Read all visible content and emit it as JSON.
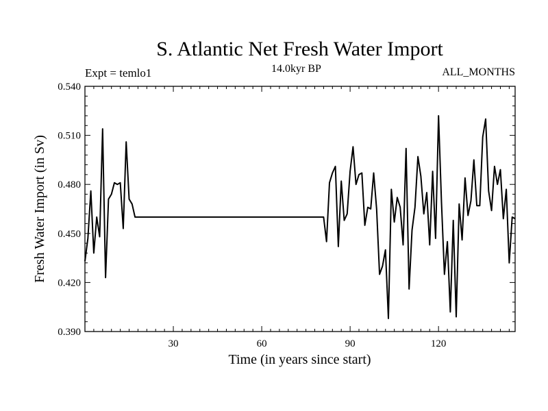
{
  "chart_data": {
    "type": "line",
    "title": "S. Atlantic Net Fresh Water Import",
    "subtitle_left": "Expt = temlo1",
    "subtitle_center": "14.0kyr BP",
    "subtitle_right": "ALL_MONTHS",
    "xlabel": "Time (in years since start)",
    "ylabel": "Fresh Water Import (in Sv)",
    "xlim": [
      0,
      146
    ],
    "ylim": [
      0.39,
      0.54
    ],
    "x_ticks": [
      30,
      60,
      90,
      120
    ],
    "x_tick_labels": [
      "30",
      "60",
      "90",
      "120"
    ],
    "y_ticks": [
      0.39,
      0.42,
      0.45,
      0.48,
      0.51,
      0.54
    ],
    "y_tick_labels": [
      "0.390",
      "0.420",
      "0.450",
      "0.480",
      "0.510",
      "0.540"
    ],
    "grid": false,
    "series": [
      {
        "name": "Fresh Water Import",
        "x": [
          0,
          1,
          2,
          3,
          4,
          5,
          6,
          7,
          8,
          9,
          10,
          11,
          12,
          13,
          14,
          15,
          16,
          17,
          18,
          19,
          20,
          30,
          40,
          50,
          60,
          70,
          80,
          81,
          82,
          83,
          84,
          85,
          86,
          87,
          88,
          89,
          90,
          91,
          92,
          93,
          94,
          95,
          96,
          97,
          98,
          99,
          100,
          101,
          102,
          103,
          104,
          105,
          106,
          107,
          108,
          109,
          110,
          111,
          112,
          113,
          114,
          115,
          116,
          117,
          118,
          119,
          120,
          121,
          122,
          123,
          124,
          125,
          126,
          127,
          128,
          129,
          130,
          131,
          132,
          133,
          134,
          135,
          136,
          137,
          138,
          139,
          140,
          141,
          142,
          143,
          144,
          145,
          146
        ],
        "y": [
          0.433,
          0.447,
          0.476,
          0.438,
          0.46,
          0.448,
          0.514,
          0.423,
          0.471,
          0.474,
          0.481,
          0.48,
          0.481,
          0.453,
          0.506,
          0.471,
          0.468,
          0.46,
          0.46,
          0.46,
          0.46,
          0.46,
          0.46,
          0.46,
          0.46,
          0.46,
          0.46,
          0.46,
          0.445,
          0.481,
          0.487,
          0.491,
          0.442,
          0.482,
          0.458,
          0.462,
          0.488,
          0.503,
          0.48,
          0.486,
          0.487,
          0.455,
          0.466,
          0.465,
          0.487,
          0.465,
          0.425,
          0.43,
          0.44,
          0.398,
          0.477,
          0.457,
          0.472,
          0.466,
          0.443,
          0.502,
          0.416,
          0.452,
          0.466,
          0.497,
          0.485,
          0.462,
          0.475,
          0.443,
          0.488,
          0.447,
          0.522,
          0.469,
          0.425,
          0.445,
          0.402,
          0.458,
          0.399,
          0.468,
          0.446,
          0.484,
          0.461,
          0.47,
          0.495,
          0.467,
          0.467,
          0.509,
          0.52,
          0.476,
          0.464,
          0.491,
          0.48,
          0.489,
          0.459,
          0.477,
          0.432,
          0.46,
          0.459
        ]
      }
    ]
  }
}
